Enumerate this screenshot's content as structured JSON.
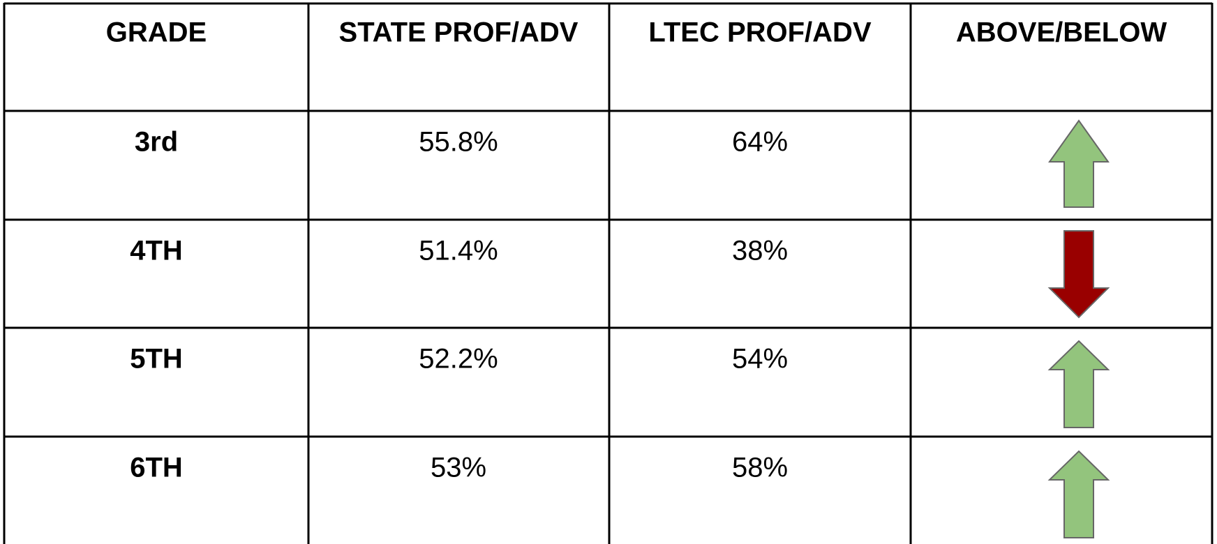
{
  "table": {
    "header": [
      "GRADE",
      "STATE PROF/ADV",
      "LTEC PROF/ADV",
      "ABOVE/BELOW"
    ],
    "rows": [
      [
        "3rd",
        "55.8%",
        "64%"
      ],
      [
        "4TH",
        "51.4%",
        "38%"
      ],
      [
        "5TH",
        "52.2%",
        "54%"
      ],
      [
        "6TH",
        "53%",
        "58%"
      ]
    ]
  }
}
